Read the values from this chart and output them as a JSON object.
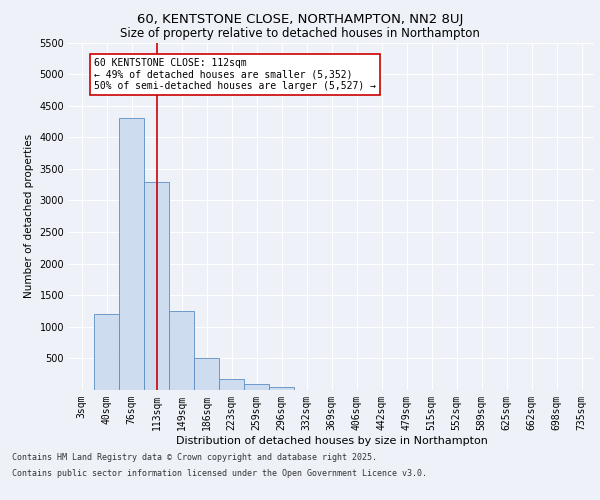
{
  "title1": "60, KENTSTONE CLOSE, NORTHAMPTON, NN2 8UJ",
  "title2": "Size of property relative to detached houses in Northampton",
  "xlabel": "Distribution of detached houses by size in Northampton",
  "ylabel": "Number of detached properties",
  "categories": [
    "3sqm",
    "40sqm",
    "76sqm",
    "113sqm",
    "149sqm",
    "186sqm",
    "223sqm",
    "259sqm",
    "296sqm",
    "332sqm",
    "369sqm",
    "406sqm",
    "442sqm",
    "479sqm",
    "515sqm",
    "552sqm",
    "589sqm",
    "625sqm",
    "662sqm",
    "698sqm",
    "735sqm"
  ],
  "values": [
    0,
    1200,
    4300,
    3300,
    1250,
    500,
    175,
    100,
    50,
    0,
    0,
    0,
    0,
    0,
    0,
    0,
    0,
    0,
    0,
    0,
    0
  ],
  "bar_color": "#cddcee",
  "bar_edge_color": "#5b8ec4",
  "vline_x_idx": 3,
  "vline_color": "#cc0000",
  "annotation_text": "60 KENTSTONE CLOSE: 112sqm\n← 49% of detached houses are smaller (5,352)\n50% of semi-detached houses are larger (5,527) →",
  "annotation_box_color": "white",
  "annotation_box_edge": "#cc0000",
  "ylim": [
    0,
    5500
  ],
  "yticks": [
    0,
    500,
    1000,
    1500,
    2000,
    2500,
    3000,
    3500,
    4000,
    4500,
    5000,
    5500
  ],
  "footer1": "Contains HM Land Registry data © Crown copyright and database right 2025.",
  "footer2": "Contains public sector information licensed under the Open Government Licence v3.0.",
  "bg_color": "#eef2f8",
  "plot_bg_color": "#eef2f8",
  "grid_color": "#ffffff",
  "title1_fontsize": 9.5,
  "title2_fontsize": 8.5,
  "xlabel_fontsize": 8,
  "ylabel_fontsize": 7.5,
  "tick_fontsize": 7,
  "footer_fontsize": 6,
  "annot_fontsize": 7
}
